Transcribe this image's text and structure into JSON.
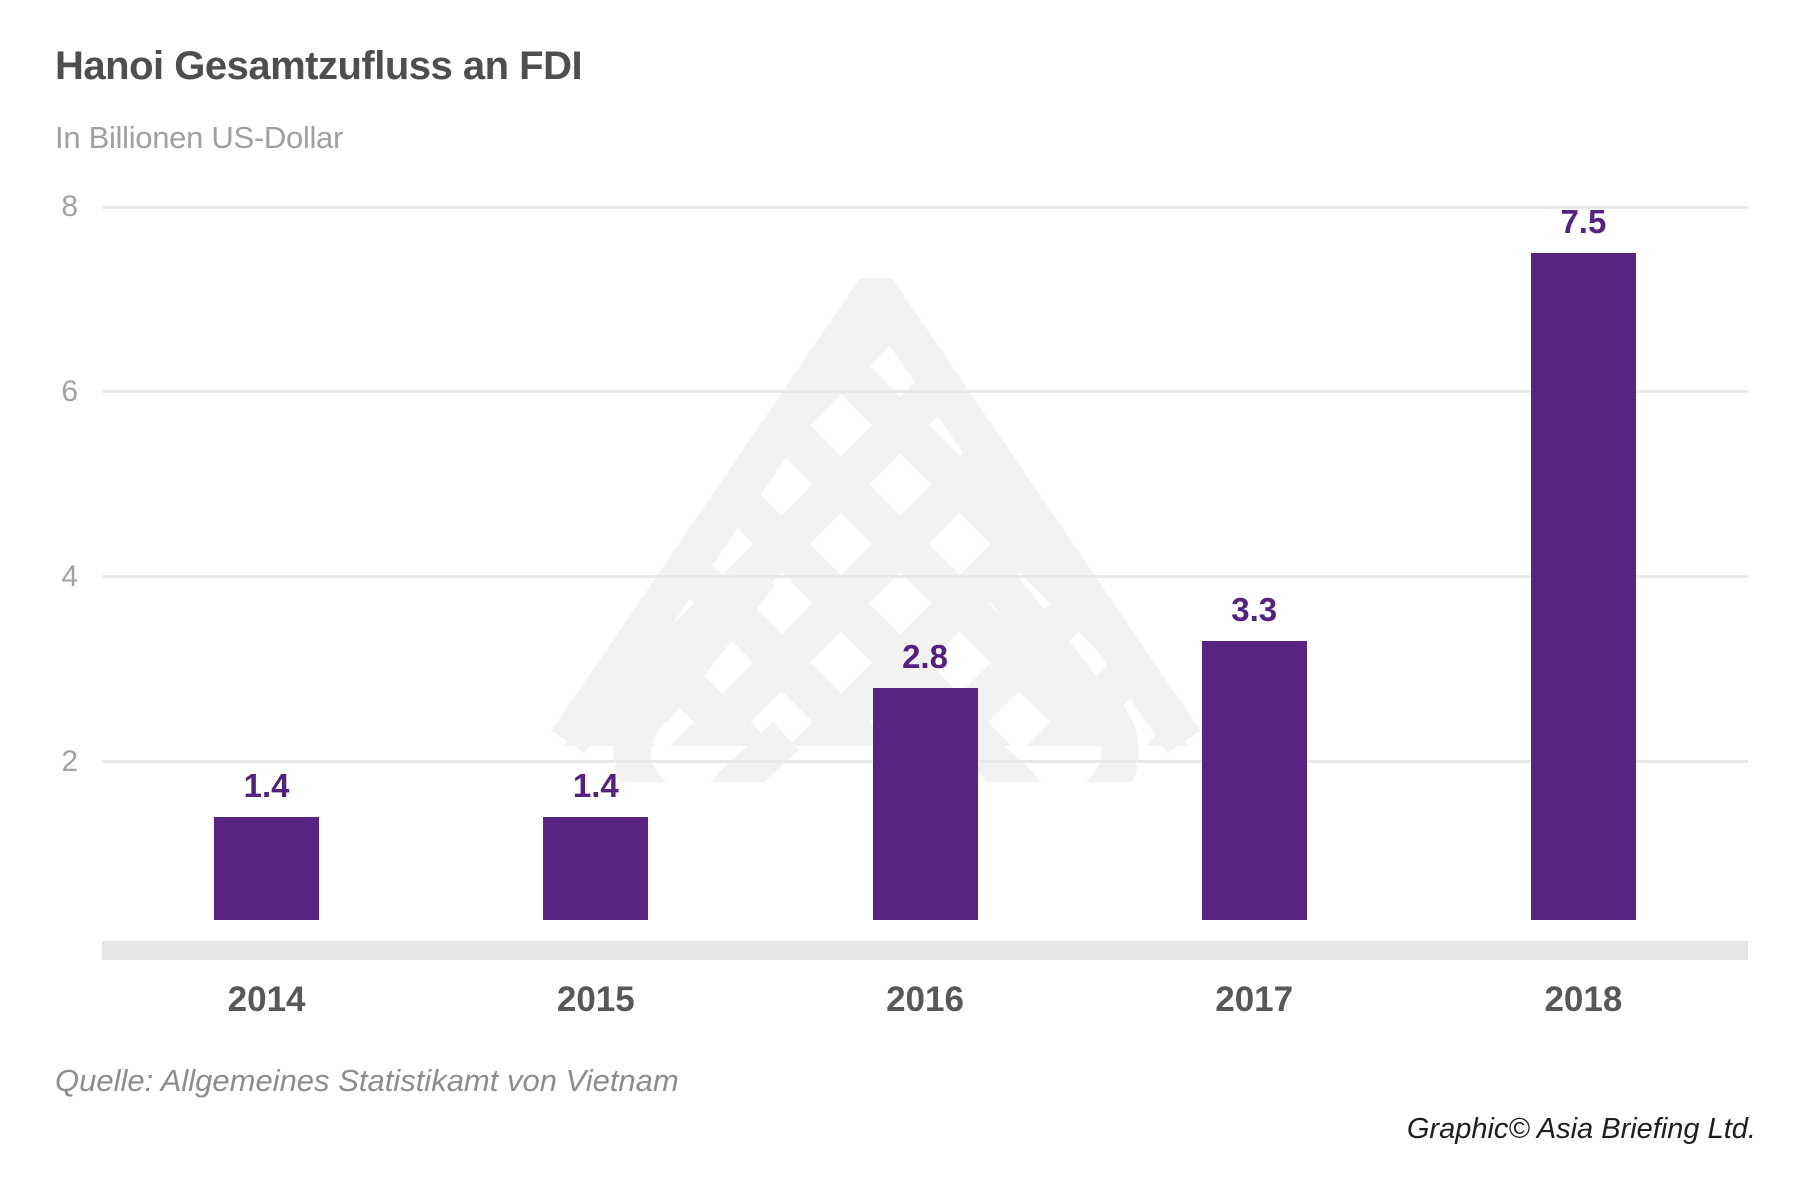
{
  "header": {
    "title": "Hanoi Gesamtzufluss an FDI",
    "subtitle": "In Billionen US-Dollar"
  },
  "chart_data": {
    "type": "bar",
    "title": "Hanoi Gesamtzufluss an FDI",
    "subtitle": "In Billionen US-Dollar",
    "categories": [
      "2014",
      "2015",
      "2016",
      "2017",
      "2018"
    ],
    "values": [
      1.4,
      1.4,
      2.8,
      3.3,
      7.5
    ],
    "value_labels": [
      "1.4",
      "1.4",
      "2.8",
      "3.3",
      "7.5"
    ],
    "y_ticks": [
      {
        "label": "8",
        "value": 8
      },
      {
        "label": "6",
        "value": 6
      },
      {
        "label": "4",
        "value": 4
      },
      {
        "label": "2",
        "value": 2
      }
    ],
    "ylim": [
      0,
      8
    ],
    "xlabel": "",
    "ylabel": "In Billionen US-Dollar",
    "grid": "horizontal",
    "legend": "none",
    "bar_color": "#5a2383"
  },
  "footer": {
    "source": "Quelle: Allgemeines Statistikamt von Vietnam",
    "credit": "Graphic© Asia Briefing Ltd."
  },
  "colors": {
    "background": "#ffffff",
    "title": "#4d4e50",
    "subtitle": "#a0a0a2",
    "tick": "#a2a2a4",
    "gridline": "#e9e9e9",
    "axis_band": "#e5e5e6",
    "bar": "#5a2383",
    "value_label": "#552180",
    "year_label": "#57585a",
    "source_text": "#8d8d8d",
    "credit_text": "#1e1e1c",
    "watermark": "#f2f2f1"
  },
  "watermark": {
    "icon": "asia-briefing-logo-watermark"
  }
}
